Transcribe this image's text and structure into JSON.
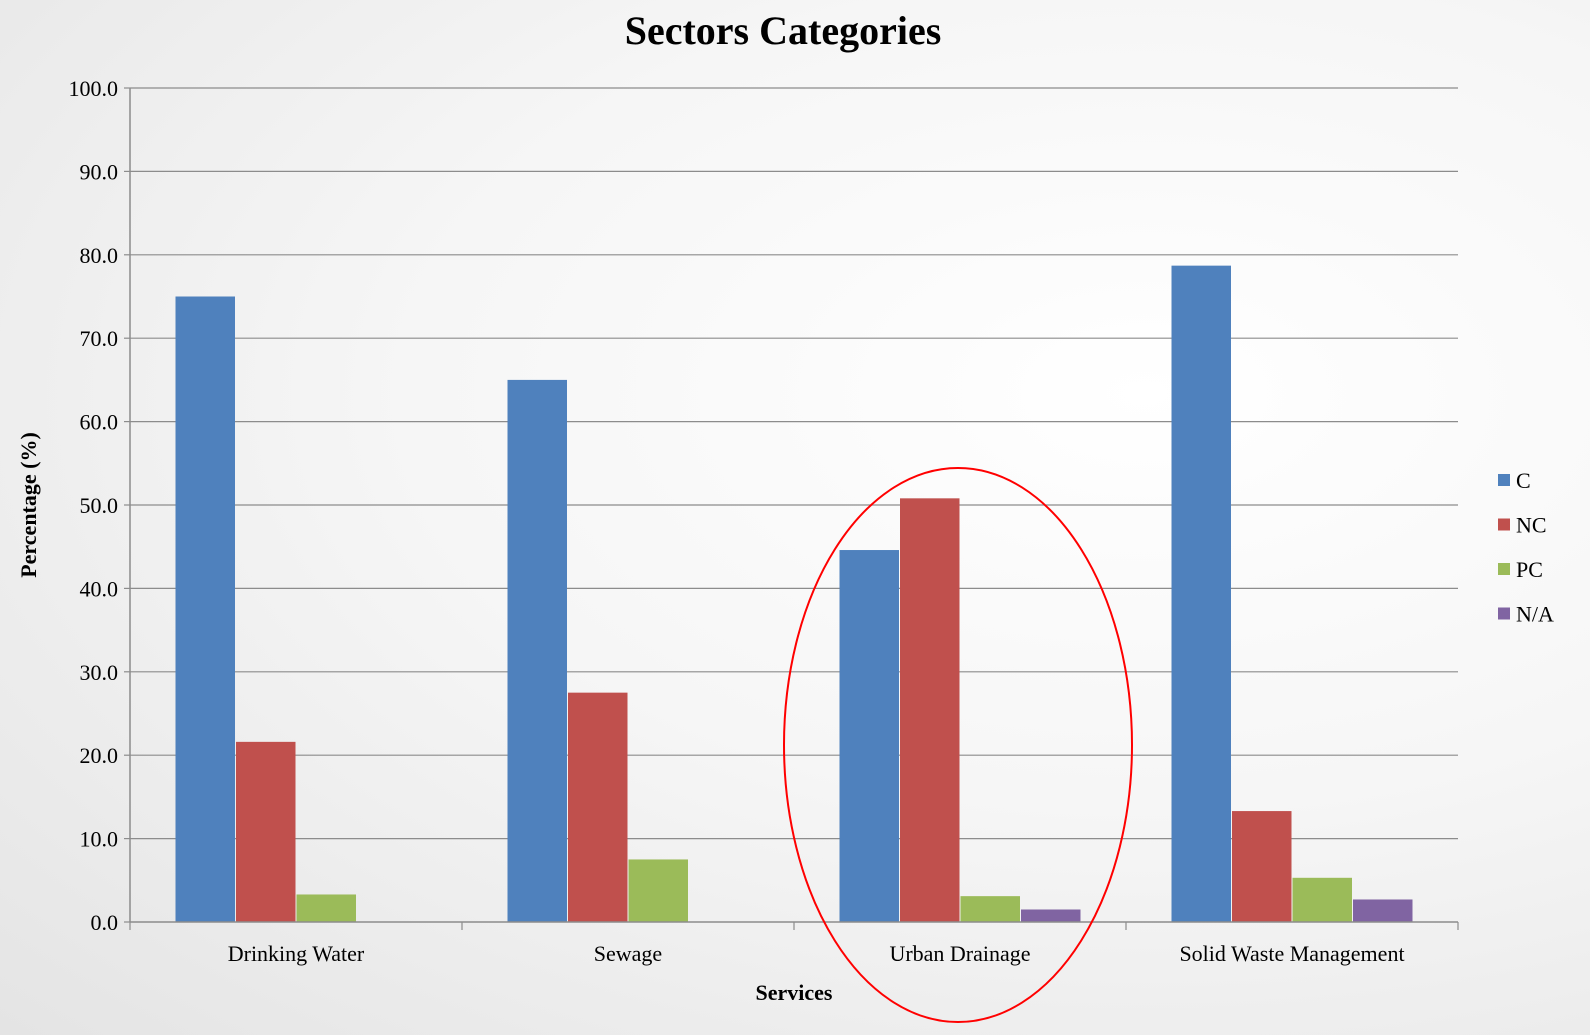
{
  "chart_data": {
    "type": "bar",
    "title": "Sectors Categories",
    "xlabel": "Services",
    "ylabel": "Percentage (%)",
    "ylim": [
      0,
      100
    ],
    "yticks": [
      "0.0",
      "10.0",
      "20.0",
      "30.0",
      "40.0",
      "50.0",
      "60.0",
      "70.0",
      "80.0",
      "90.0",
      "100.0"
    ],
    "grid": true,
    "legend_position": "right",
    "categories": [
      "Drinking Water",
      "Sewage",
      "Urban Drainage",
      "Solid Waste Management"
    ],
    "series": [
      {
        "name": "C",
        "color": "#4F81BD",
        "values": [
          75.0,
          65.0,
          44.6,
          78.7
        ]
      },
      {
        "name": "NC",
        "color": "#C0504D",
        "values": [
          21.6,
          27.5,
          50.8,
          13.3
        ]
      },
      {
        "name": "PC",
        "color": "#9BBB59",
        "values": [
          3.3,
          7.5,
          3.1,
          5.3
        ]
      },
      {
        "name": "N/A",
        "color": "#8064A2",
        "values": [
          0,
          0,
          1.5,
          2.7
        ]
      }
    ],
    "annotations": [
      {
        "type": "ellipse-highlight",
        "category": "Urban Drainage",
        "color": "#FF0000"
      }
    ]
  }
}
